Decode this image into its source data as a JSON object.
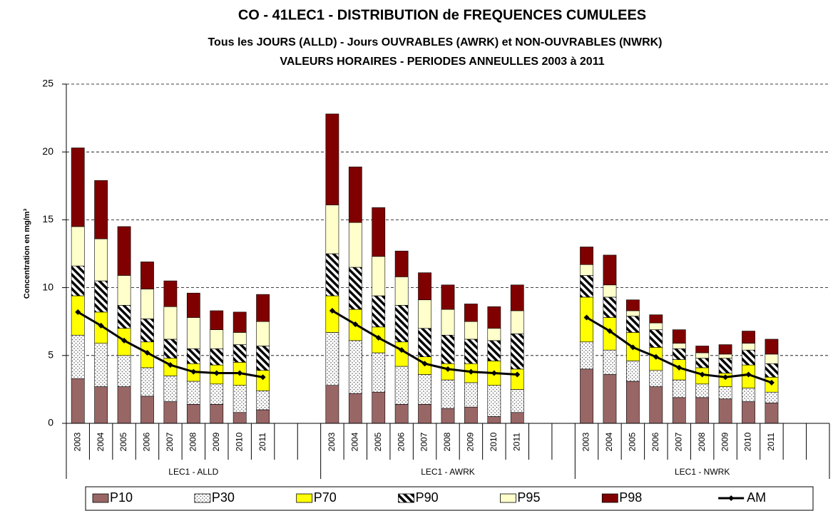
{
  "chart_data": {
    "type": "bar",
    "stacked": true,
    "title": "CO - 41LEC1 - DISTRIBUTION de FREQUENCES CUMULEES",
    "subtitle": [
      "Tous les JOURS (ALLD)  -  Jours OUVRABLES (AWRK) et  NON-OUVRABLES (NWRK)",
      "VALEURS HORAIRES   -   PERIODES ANNEULLES 2003 à 2011"
    ],
    "y_label": "Concentration en mg/m³",
    "groups": [
      "LEC1 - ALLD",
      "LEC1 - AWRK",
      "LEC1 - NWRK"
    ],
    "categories": [
      "2003",
      "2004",
      "2005",
      "2006",
      "2007",
      "2008",
      "2009",
      "2010",
      "2011",
      null,
      null,
      "2003",
      "2004",
      "2005",
      "2006",
      "2007",
      "2008",
      "2009",
      "2010",
      "2011",
      null,
      null,
      "2003",
      "2004",
      "2005",
      "2006",
      "2007",
      "2008",
      "2009",
      "2010",
      "2011",
      null,
      null
    ],
    "ylim": [
      0,
      25
    ],
    "yticks": [
      0,
      5,
      10,
      15,
      20,
      25
    ],
    "grid": true,
    "legend": "bottom",
    "series": [
      {
        "name": "P10",
        "type": "bar",
        "color": "#996666",
        "values": [
          3.3,
          2.7,
          2.7,
          2.0,
          1.6,
          1.4,
          1.4,
          0.8,
          1.0,
          null,
          null,
          2.8,
          2.2,
          2.3,
          1.4,
          1.4,
          1.1,
          1.2,
          0.5,
          0.8,
          null,
          null,
          4.0,
          3.6,
          3.1,
          2.7,
          1.9,
          1.9,
          1.8,
          1.6,
          1.5,
          null,
          null
        ]
      },
      {
        "name": "P30",
        "type": "bar",
        "color": "#ffffff",
        "pattern": "dots",
        "values": [
          3.2,
          3.2,
          2.3,
          2.1,
          1.9,
          1.7,
          1.5,
          2.0,
          1.4,
          null,
          null,
          3.9,
          3.9,
          2.9,
          2.8,
          2.2,
          2.1,
          1.8,
          2.3,
          1.7,
          null,
          null,
          2.0,
          1.8,
          1.5,
          1.2,
          1.3,
          1.0,
          0.9,
          1.0,
          0.8,
          null,
          null
        ]
      },
      {
        "name": "P70",
        "type": "bar",
        "color": "#ffff00",
        "values": [
          2.9,
          2.3,
          2.0,
          1.9,
          1.3,
          1.3,
          1.4,
          1.7,
          1.5,
          null,
          null,
          2.7,
          2.3,
          1.9,
          1.8,
          1.3,
          1.2,
          1.4,
          1.8,
          1.5,
          null,
          null,
          3.3,
          2.4,
          2.1,
          1.7,
          1.5,
          1.2,
          1.0,
          1.7,
          1.1,
          null,
          null
        ]
      },
      {
        "name": "P90",
        "type": "bar",
        "color": "#ffffff",
        "pattern": "hatch",
        "values": [
          2.2,
          2.3,
          1.7,
          1.7,
          1.4,
          1.1,
          1.2,
          1.3,
          1.8,
          null,
          null,
          3.1,
          3.1,
          2.3,
          2.7,
          2.1,
          2.1,
          1.8,
          1.5,
          2.6,
          null,
          null,
          1.6,
          1.5,
          1.2,
          1.3,
          0.8,
          0.7,
          1.1,
          1.1,
          1.0,
          null,
          null
        ]
      },
      {
        "name": "P95",
        "type": "bar",
        "color": "#ffffcc",
        "values": [
          2.9,
          3.1,
          2.2,
          2.2,
          2.4,
          2.3,
          1.4,
          0.9,
          1.8,
          null,
          null,
          3.6,
          3.3,
          2.9,
          2.1,
          2.1,
          1.9,
          1.3,
          0.9,
          1.7,
          null,
          null,
          0.8,
          0.9,
          0.4,
          0.5,
          0.4,
          0.4,
          0.3,
          0.5,
          0.7,
          null,
          null
        ]
      },
      {
        "name": "P98",
        "type": "bar",
        "color": "#800000",
        "values": [
          5.8,
          4.3,
          3.6,
          2.0,
          1.9,
          1.8,
          1.4,
          1.5,
          2.0,
          null,
          null,
          6.7,
          4.1,
          3.6,
          1.9,
          2.0,
          1.8,
          1.3,
          1.6,
          1.9,
          null,
          null,
          1.3,
          2.2,
          0.8,
          0.6,
          1.0,
          0.5,
          0.7,
          0.9,
          1.1,
          null,
          null
        ]
      },
      {
        "name": "AM",
        "type": "line",
        "color": "#000000",
        "values": [
          8.2,
          7.2,
          6.1,
          5.2,
          4.3,
          3.8,
          3.7,
          3.7,
          3.4,
          null,
          null,
          8.3,
          7.3,
          6.3,
          5.4,
          4.4,
          4.0,
          3.8,
          3.7,
          3.6,
          null,
          null,
          7.8,
          6.8,
          5.6,
          4.9,
          4.1,
          3.6,
          3.4,
          3.6,
          3.0,
          null,
          null
        ]
      }
    ]
  }
}
